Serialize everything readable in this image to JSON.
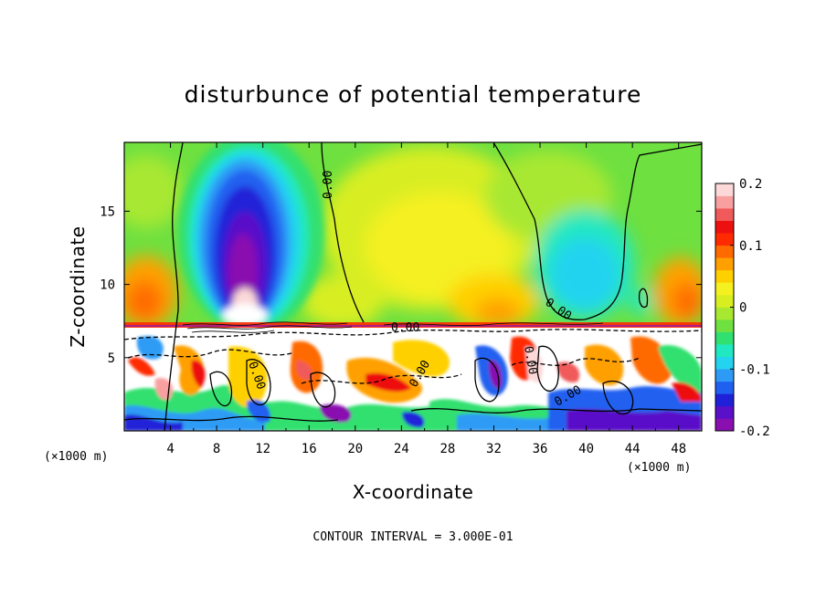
{
  "chart_data": {
    "type": "heatmap",
    "title": "disturbunce of potential temperature",
    "xlabel": "X-coordinate",
    "ylabel": "Z-coordinate",
    "x_unit_left": "(×1000 m)",
    "x_unit_right": "(×1000 m)",
    "x_ticks": [
      "4",
      "8",
      "12",
      "16",
      "20",
      "24",
      "28",
      "32",
      "36",
      "40",
      "44",
      "48"
    ],
    "x_tick_values": [
      4,
      8,
      12,
      16,
      20,
      24,
      28,
      32,
      36,
      40,
      44,
      48
    ],
    "y_ticks": [
      "5",
      "10",
      "15"
    ],
    "y_tick_values": [
      5,
      10,
      15
    ],
    "xlim": [
      0,
      50
    ],
    "ylim": [
      0,
      19.7
    ],
    "colorbar": {
      "ticks": [
        "0.2",
        "0.1",
        "0",
        "-0.1",
        "-0.2"
      ],
      "tick_values": [
        0.2,
        0.1,
        0,
        -0.1,
        -0.2
      ],
      "range": [
        -0.2,
        0.2
      ],
      "levels": [
        "#8a0fb0",
        "#5a10c8",
        "#2020d8",
        "#2060f0",
        "#2d9bf5",
        "#23d3f0",
        "#20e8c0",
        "#30e070",
        "#6ee040",
        "#a8e830",
        "#d8ee20",
        "#f5f020",
        "#ffd000",
        "#ffa000",
        "#ff6a00",
        "#ff2a00",
        "#ee1010",
        "#f05a5a",
        "#f8a0a0",
        "#fcd8d8"
      ]
    },
    "contour_labels": [
      "0.00",
      "0.00",
      "0.00",
      "0.00",
      "0.00",
      "0.00",
      "0.00"
    ],
    "footer": "CONTOUR INTERVAL = 3.000E-01"
  }
}
